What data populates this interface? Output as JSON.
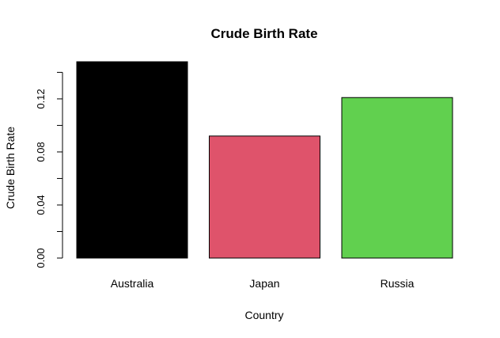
{
  "chart_data": {
    "type": "bar",
    "title": "Crude Birth Rate",
    "xlabel": "Country",
    "ylabel": "Crude Birth Rate",
    "categories": [
      "Australia",
      "Japan",
      "Russia"
    ],
    "values": [
      0.148,
      0.092,
      0.121
    ],
    "colors": [
      "#000000",
      "#DF536B",
      "#61D04F"
    ],
    "ylim": [
      0,
      0.14
    ],
    "yticks": [
      0.0,
      0.04,
      0.08,
      0.12
    ],
    "ytick_labels": [
      "0.00",
      "0.04",
      "0.08",
      "0.12"
    ],
    "grid": false,
    "legend": "none"
  }
}
